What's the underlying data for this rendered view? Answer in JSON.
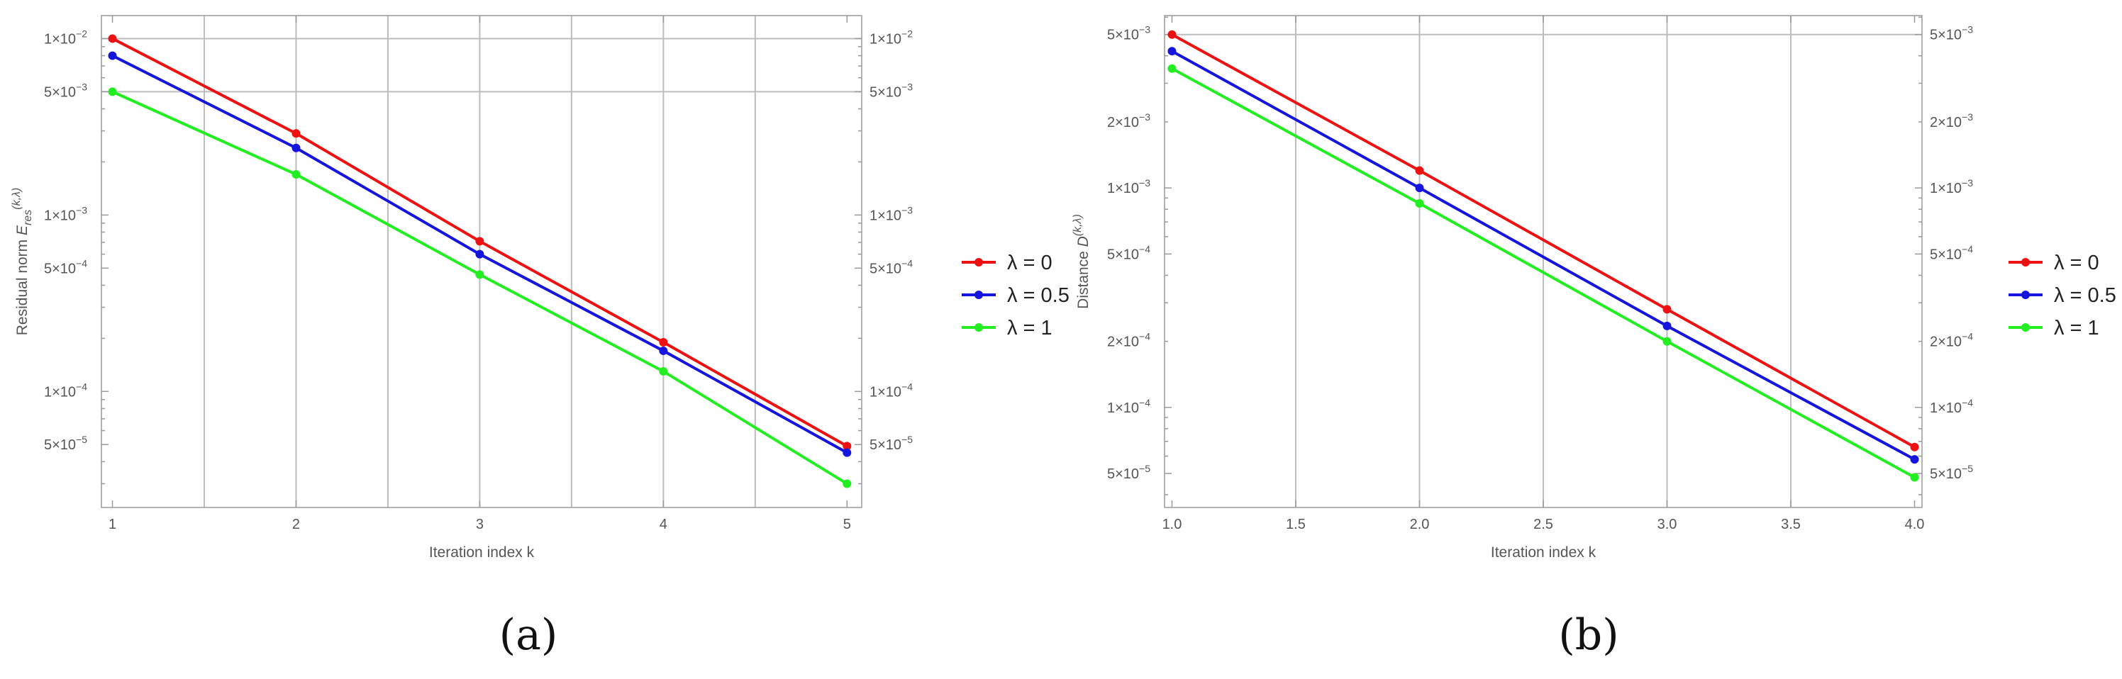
{
  "chart_data": [
    {
      "type": "line",
      "panel_label": "(a)",
      "xlabel": "Iteration index  k",
      "ylabel": "Residual norm",
      "ylabel_quantity": "E",
      "ylabel_subscript": "res",
      "ylabel_superscript": "(k,λ)",
      "y_scale": "log",
      "xlim": [
        0.94,
        5.08
      ],
      "ylim": [
        2.2e-05,
        0.0135
      ],
      "x_ticks": [
        "1",
        "2",
        "3",
        "4",
        "5"
      ],
      "x_tick_values": [
        1,
        2,
        3,
        4,
        5
      ],
      "y_tick_labels": [
        {
          "mantissa": "5",
          "exponent": "−5",
          "value": 5e-05
        },
        {
          "mantissa": "1",
          "exponent": "−4",
          "value": 0.0001
        },
        {
          "mantissa": "5",
          "exponent": "−4",
          "value": 0.0005
        },
        {
          "mantissa": "1",
          "exponent": "−3",
          "value": 0.001
        },
        {
          "mantissa": "5",
          "exponent": "−3",
          "value": 0.005
        },
        {
          "mantissa": "1",
          "exponent": "−2",
          "value": 0.01
        }
      ],
      "grid_x": [
        1.5,
        2,
        2.5,
        3,
        3.5,
        4,
        4.5
      ],
      "grid_y": [
        0.005,
        0.01
      ],
      "legend_position": "right",
      "series": [
        {
          "name": "λ = 0",
          "color": "#ee1111",
          "x": [
            1,
            2,
            3,
            4,
            5
          ],
          "y": [
            0.01,
            0.0029,
            0.00071,
            0.00019,
            4.9e-05
          ]
        },
        {
          "name": "λ = 0.5",
          "color": "#1515dd",
          "x": [
            1,
            2,
            3,
            4,
            5
          ],
          "y": [
            0.008,
            0.0024,
            0.0006,
            0.00017,
            4.5e-05
          ]
        },
        {
          "name": "λ = 1",
          "color": "#22ee22",
          "x": [
            1,
            2,
            3,
            4,
            5
          ],
          "y": [
            0.005,
            0.0017,
            0.00046,
            0.00013,
            3e-05
          ]
        }
      ]
    },
    {
      "type": "line",
      "panel_label": "(b)",
      "xlabel": "Iteration index  k",
      "ylabel": "Distance",
      "ylabel_quantity": "D",
      "ylabel_subscript": "",
      "ylabel_superscript": "(k,λ)",
      "y_scale": "log",
      "xlim": [
        0.97,
        4.03
      ],
      "ylim": [
        3.5e-05,
        0.0061
      ],
      "x_ticks": [
        "1.0",
        "1.5",
        "2.0",
        "2.5",
        "3.0",
        "3.5",
        "4.0"
      ],
      "x_tick_values": [
        1,
        1.5,
        2,
        2.5,
        3,
        3.5,
        4
      ],
      "y_tick_labels": [
        {
          "mantissa": "5",
          "exponent": "−5",
          "value": 5e-05
        },
        {
          "mantissa": "1",
          "exponent": "−4",
          "value": 0.0001
        },
        {
          "mantissa": "2",
          "exponent": "−4",
          "value": 0.0002
        },
        {
          "mantissa": "5",
          "exponent": "−4",
          "value": 0.0005
        },
        {
          "mantissa": "1",
          "exponent": "−3",
          "value": 0.001
        },
        {
          "mantissa": "2",
          "exponent": "−3",
          "value": 0.002
        },
        {
          "mantissa": "5",
          "exponent": "−3",
          "value": 0.005
        }
      ],
      "grid_x": [
        1.5,
        2,
        2.5,
        3,
        3.5
      ],
      "grid_y": [
        0.005
      ],
      "legend_position": "right",
      "series": [
        {
          "name": "λ = 0",
          "color": "#ee1111",
          "x": [
            1,
            2,
            3,
            4
          ],
          "y": [
            0.005,
            0.0012,
            0.00028,
            6.6e-05
          ]
        },
        {
          "name": "λ = 0.5",
          "color": "#1515dd",
          "x": [
            1,
            2,
            3,
            4
          ],
          "y": [
            0.0042,
            0.001,
            0.000235,
            5.8e-05
          ]
        },
        {
          "name": "λ = 1",
          "color": "#22ee22",
          "x": [
            1,
            2,
            3,
            4
          ],
          "y": [
            0.0035,
            0.00085,
            0.0002,
            4.8e-05
          ]
        }
      ]
    }
  ]
}
